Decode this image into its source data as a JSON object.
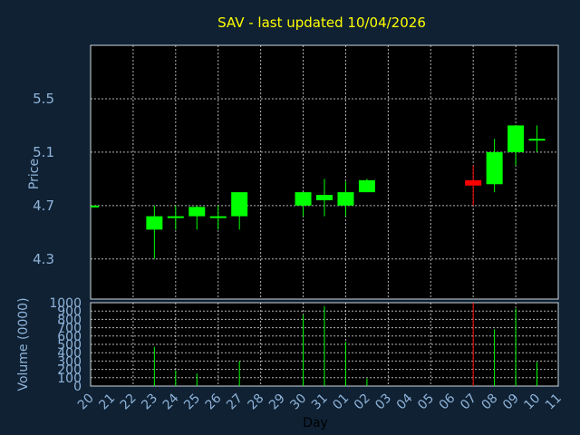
{
  "chart_data": [
    {
      "type": "candlestick",
      "title": "SAV - last updated 10/04/2026",
      "ylabel": "Price",
      "ylim": [
        4.0,
        5.9
      ],
      "yticks": [
        "5.5",
        "5.1",
        "4.7",
        "4.3"
      ],
      "grid": true,
      "up_color": "#00ff00",
      "down_color": "#ff0000",
      "background": "#0f2133",
      "plot_background": "#000000",
      "grid_color": "#ffffff",
      "title_color": "#ffff00",
      "tick_color": "#8fb3d9",
      "x": [
        "20",
        "21",
        "22",
        "23",
        "24",
        "25",
        "26",
        "27",
        "28",
        "29",
        "30",
        "31",
        "01",
        "02",
        "03",
        "04",
        "05",
        "06",
        "07",
        "08",
        "09",
        "10",
        "11"
      ],
      "candles": [
        {
          "x": 0,
          "open": 4.7,
          "high": 4.7,
          "low": 4.7,
          "close": 4.7
        },
        {
          "x": 3,
          "open": 4.52,
          "high": 4.7,
          "low": 4.3,
          "close": 4.62
        },
        {
          "x": 4,
          "open": 4.62,
          "high": 4.7,
          "low": 4.52,
          "close": 4.62
        },
        {
          "x": 5,
          "open": 4.62,
          "high": 4.7,
          "low": 4.52,
          "close": 4.69
        },
        {
          "x": 6,
          "open": 4.62,
          "high": 4.7,
          "low": 4.52,
          "close": 4.62
        },
        {
          "x": 7,
          "open": 4.62,
          "high": 4.8,
          "low": 4.52,
          "close": 4.8
        },
        {
          "x": 10,
          "open": 4.7,
          "high": 4.8,
          "low": 4.62,
          "close": 4.8
        },
        {
          "x": 11,
          "open": 4.74,
          "high": 4.9,
          "low": 4.62,
          "close": 4.78
        },
        {
          "x": 12,
          "open": 4.7,
          "high": 4.88,
          "low": 4.62,
          "close": 4.8
        },
        {
          "x": 13,
          "open": 4.8,
          "high": 4.9,
          "low": 4.8,
          "close": 4.89
        },
        {
          "x": 18,
          "open": 4.89,
          "high": 5.0,
          "low": 4.7,
          "close": 4.85
        },
        {
          "x": 19,
          "open": 4.86,
          "high": 5.2,
          "low": 4.8,
          "close": 5.1
        },
        {
          "x": 20,
          "open": 5.1,
          "high": 5.3,
          "low": 5.0,
          "close": 5.3
        },
        {
          "x": 21,
          "open": 5.2,
          "high": 5.3,
          "low": 5.1,
          "close": 5.2
        }
      ]
    },
    {
      "type": "bar",
      "ylabel": "Volume (0000)",
      "xlabel": "Day",
      "ylim": [
        0,
        1000
      ],
      "yticks": [
        "1000",
        "900",
        "800",
        "700",
        "600",
        "500",
        "400",
        "300",
        "200",
        "100",
        "0"
      ],
      "grid": true,
      "x": [
        "20",
        "21",
        "22",
        "23",
        "24",
        "25",
        "26",
        "27",
        "28",
        "29",
        "30",
        "31",
        "01",
        "02",
        "03",
        "04",
        "05",
        "06",
        "07",
        "08",
        "09",
        "10",
        "11"
      ],
      "bars": [
        {
          "x": 3,
          "value": 470,
          "color": "#00ff00"
        },
        {
          "x": 4,
          "value": 190,
          "color": "#00ff00"
        },
        {
          "x": 5,
          "value": 150,
          "color": "#00ff00"
        },
        {
          "x": 7,
          "value": 300,
          "color": "#00ff00"
        },
        {
          "x": 10,
          "value": 850,
          "color": "#00ff00"
        },
        {
          "x": 11,
          "value": 960,
          "color": "#00ff00"
        },
        {
          "x": 12,
          "value": 530,
          "color": "#00ff00"
        },
        {
          "x": 13,
          "value": 90,
          "color": "#00ff00"
        },
        {
          "x": 18,
          "value": 1000,
          "color": "#ff0000"
        },
        {
          "x": 19,
          "value": 680,
          "color": "#00ff00"
        },
        {
          "x": 20,
          "value": 930,
          "color": "#00ff00"
        },
        {
          "x": 21,
          "value": 290,
          "color": "#00ff00"
        }
      ]
    }
  ]
}
